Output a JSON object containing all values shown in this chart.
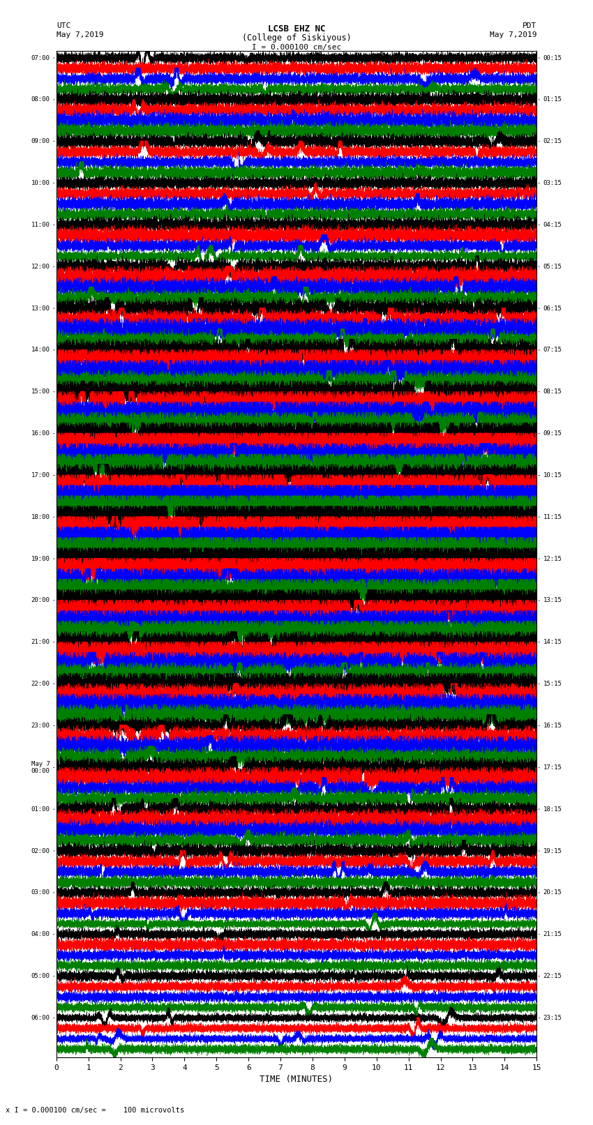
{
  "title_line1": "LCSB EHZ NC",
  "title_line2": "(College of Siskiyous)",
  "scale_label": "I = 0.000100 cm/sec",
  "footer_label": "x I = 0.000100 cm/sec =    100 microvolts",
  "xlabel": "TIME (MINUTES)",
  "trace_colors_cycle": [
    "black",
    "red",
    "blue",
    "green"
  ],
  "background_color": "white",
  "fig_width": 8.5,
  "fig_height": 16.13,
  "dpi": 100,
  "n_rows": 96,
  "n_points": 18000,
  "x_min": 0,
  "x_max": 15,
  "left_times_utc": [
    "07:00",
    "",
    "",
    "",
    "08:00",
    "",
    "",
    "",
    "09:00",
    "",
    "",
    "",
    "10:00",
    "",
    "",
    "",
    "11:00",
    "",
    "",
    "",
    "12:00",
    "",
    "",
    "",
    "13:00",
    "",
    "",
    "",
    "14:00",
    "",
    "",
    "",
    "15:00",
    "",
    "",
    "",
    "16:00",
    "",
    "",
    "",
    "17:00",
    "",
    "",
    "",
    "18:00",
    "",
    "",
    "",
    "19:00",
    "",
    "",
    "",
    "20:00",
    "",
    "",
    "",
    "21:00",
    "",
    "",
    "",
    "22:00",
    "",
    "",
    "",
    "23:00",
    "",
    "",
    "",
    "May 7\n00:00",
    "",
    "",
    "",
    "01:00",
    "",
    "",
    "",
    "02:00",
    "",
    "",
    "",
    "03:00",
    "",
    "",
    "",
    "04:00",
    "",
    "",
    "",
    "05:00",
    "",
    "",
    "",
    "06:00",
    "",
    "",
    ""
  ],
  "right_times_pdt": [
    "00:15",
    "",
    "",
    "",
    "01:15",
    "",
    "",
    "",
    "02:15",
    "",
    "",
    "",
    "03:15",
    "",
    "",
    "",
    "04:15",
    "",
    "",
    "",
    "05:15",
    "",
    "",
    "",
    "06:15",
    "",
    "",
    "",
    "07:15",
    "",
    "",
    "",
    "08:15",
    "",
    "",
    "",
    "09:15",
    "",
    "",
    "",
    "10:15",
    "",
    "",
    "",
    "11:15",
    "",
    "",
    "",
    "12:15",
    "",
    "",
    "",
    "13:15",
    "",
    "",
    "",
    "14:15",
    "",
    "",
    "",
    "15:15",
    "",
    "",
    "",
    "16:15",
    "",
    "",
    "",
    "17:15",
    "",
    "",
    "",
    "18:15",
    "",
    "",
    "",
    "19:15",
    "",
    "",
    "",
    "20:15",
    "",
    "",
    "",
    "21:15",
    "",
    "",
    "",
    "22:15",
    "",
    "",
    "",
    "23:15",
    "",
    "",
    ""
  ],
  "noise_levels": [
    0.6,
    0.6,
    0.7,
    0.6,
    0.7,
    0.7,
    0.8,
    0.7,
    0.7,
    0.8,
    0.7,
    0.7,
    0.6,
    0.6,
    0.7,
    0.6,
    0.7,
    0.8,
    0.7,
    0.6,
    0.8,
    1.0,
    0.9,
    0.8,
    1.0,
    1.1,
    1.0,
    0.9,
    1.2,
    1.3,
    1.2,
    1.1,
    1.3,
    1.4,
    1.3,
    1.2,
    1.4,
    1.5,
    1.4,
    1.3,
    1.5,
    1.6,
    1.5,
    1.4,
    1.5,
    1.6,
    1.5,
    1.4,
    1.4,
    1.5,
    1.4,
    1.3,
    1.3,
    1.4,
    1.3,
    1.2,
    1.2,
    1.3,
    1.2,
    1.1,
    1.1,
    1.2,
    1.1,
    1.0,
    1.0,
    1.1,
    1.0,
    0.9,
    0.9,
    1.0,
    0.9,
    0.8,
    0.8,
    0.9,
    0.8,
    0.7,
    0.7,
    0.8,
    0.7,
    0.6,
    0.6,
    0.7,
    0.6,
    0.5,
    0.5,
    0.6,
    0.5,
    0.5,
    0.5,
    0.5,
    0.5,
    0.5,
    0.5,
    0.5,
    0.5,
    0.5
  ]
}
